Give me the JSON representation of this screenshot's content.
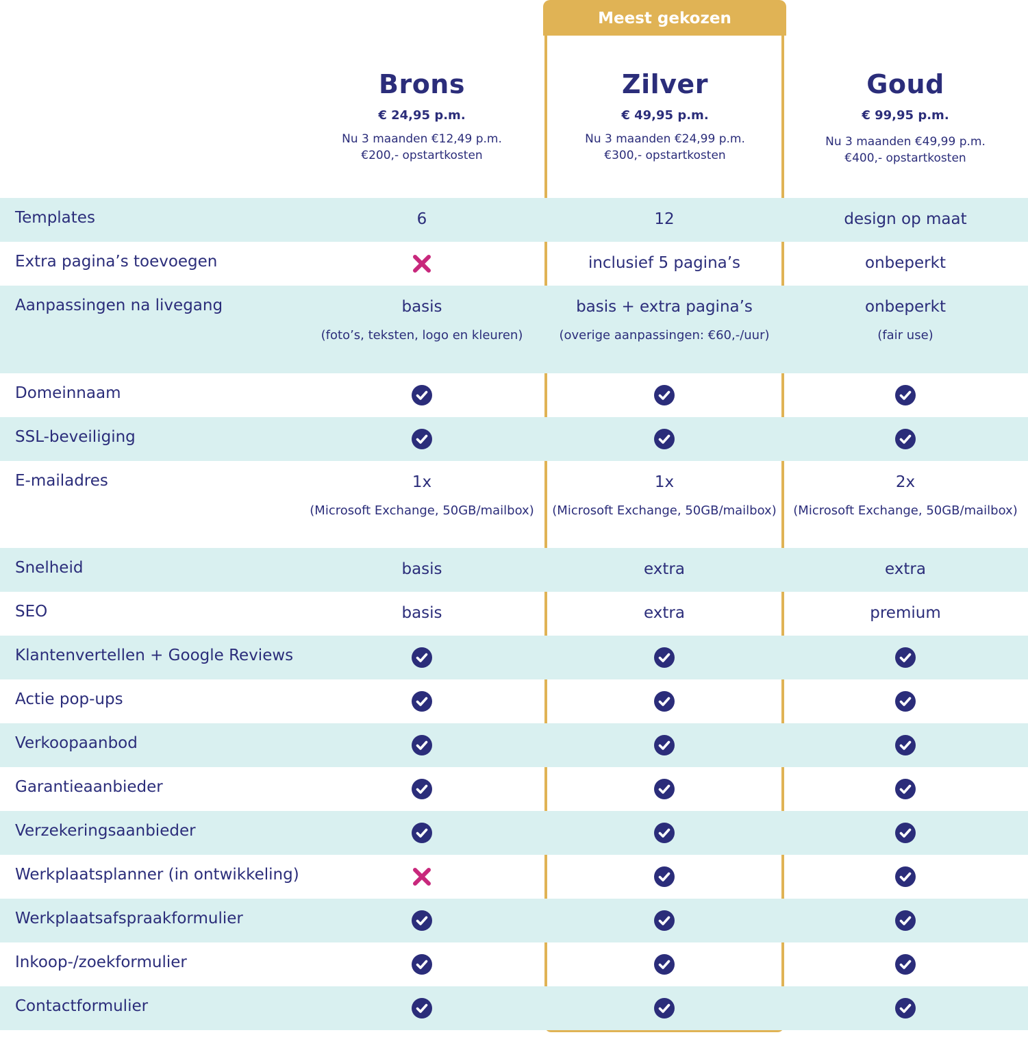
{
  "badge": "Meest gekozen",
  "colors": {
    "primary": "#2b2d7a",
    "accent_gold": "#e0b355",
    "row_alt": "#d9f0f0",
    "cross": "#c8287c"
  },
  "plans": [
    {
      "name": "Brons",
      "price": "€ 24,95 p.m.",
      "promo": "Nu 3 maanden €12,49 p.m.",
      "setup": "€200,- opstartkosten"
    },
    {
      "name": "Zilver",
      "price": "€ 49,95 p.m.",
      "promo": "Nu 3 maanden €24,99 p.m.",
      "setup": "€300,- opstartkosten"
    },
    {
      "name": "Goud",
      "price": "€ 99,95 p.m.",
      "promo": "Nu 3 maanden €49,99 p.m.",
      "setup": "€400,- opstartkosten"
    }
  ],
  "features": [
    {
      "label": "Templates",
      "cells": [
        {
          "text": "6"
        },
        {
          "text": "12"
        },
        {
          "text": "design op maat"
        }
      ]
    },
    {
      "label": "Extra pagina’s toevoegen",
      "cells": [
        {
          "icon": "cross"
        },
        {
          "text": "inclusief 5 pagina’s"
        },
        {
          "text": "onbeperkt"
        }
      ]
    },
    {
      "label": "Aanpassingen na livegang",
      "cells": [
        {
          "text": "basis",
          "sub": "(foto’s, teksten, logo en kleuren)"
        },
        {
          "text": "basis + extra pagina’s",
          "sub": "(overige aanpassingen: €60,-/uur)"
        },
        {
          "text": "onbeperkt",
          "sub": "(fair use)"
        }
      ]
    },
    {
      "label": "Domeinnaam",
      "cells": [
        {
          "icon": "check"
        },
        {
          "icon": "check"
        },
        {
          "icon": "check"
        }
      ]
    },
    {
      "label": "SSL-beveiliging",
      "cells": [
        {
          "icon": "check"
        },
        {
          "icon": "check"
        },
        {
          "icon": "check"
        }
      ]
    },
    {
      "label": "E-mailadres",
      "cells": [
        {
          "text": "1x",
          "sub": "(Microsoft Exchange, 50GB/mailbox)"
        },
        {
          "text": "1x",
          "sub": "(Microsoft Exchange, 50GB/mailbox)"
        },
        {
          "text": "2x",
          "sub": "(Microsoft Exchange, 50GB/mailbox)"
        }
      ]
    },
    {
      "label": "Snelheid",
      "cells": [
        {
          "text": "basis"
        },
        {
          "text": "extra"
        },
        {
          "text": "extra"
        }
      ]
    },
    {
      "label": "SEO",
      "cells": [
        {
          "text": "basis"
        },
        {
          "text": "extra"
        },
        {
          "text": "premium"
        }
      ]
    },
    {
      "label": "Klantenvertellen + Google Reviews",
      "cells": [
        {
          "icon": "check"
        },
        {
          "icon": "check"
        },
        {
          "icon": "check"
        }
      ]
    },
    {
      "label": "Actie pop-ups",
      "cells": [
        {
          "icon": "check"
        },
        {
          "icon": "check"
        },
        {
          "icon": "check"
        }
      ]
    },
    {
      "label": "Verkoopaanbod",
      "cells": [
        {
          "icon": "check"
        },
        {
          "icon": "check"
        },
        {
          "icon": "check"
        }
      ]
    },
    {
      "label": "Garantieaanbieder",
      "cells": [
        {
          "icon": "check"
        },
        {
          "icon": "check"
        },
        {
          "icon": "check"
        }
      ]
    },
    {
      "label": "Verzekeringsaanbieder",
      "cells": [
        {
          "icon": "check"
        },
        {
          "icon": "check"
        },
        {
          "icon": "check"
        }
      ]
    },
    {
      "label": "Werkplaatsplanner (in ontwikkeling)",
      "cells": [
        {
          "icon": "cross"
        },
        {
          "icon": "check"
        },
        {
          "icon": "check"
        }
      ]
    },
    {
      "label": "Werkplaatsafspraakformulier",
      "cells": [
        {
          "icon": "check"
        },
        {
          "icon": "check"
        },
        {
          "icon": "check"
        }
      ]
    },
    {
      "label": "Inkoop-/zoekformulier",
      "cells": [
        {
          "icon": "check"
        },
        {
          "icon": "check"
        },
        {
          "icon": "check"
        }
      ]
    },
    {
      "label": "Contactformulier",
      "cells": [
        {
          "icon": "check"
        },
        {
          "icon": "check"
        },
        {
          "icon": "check"
        }
      ]
    }
  ]
}
